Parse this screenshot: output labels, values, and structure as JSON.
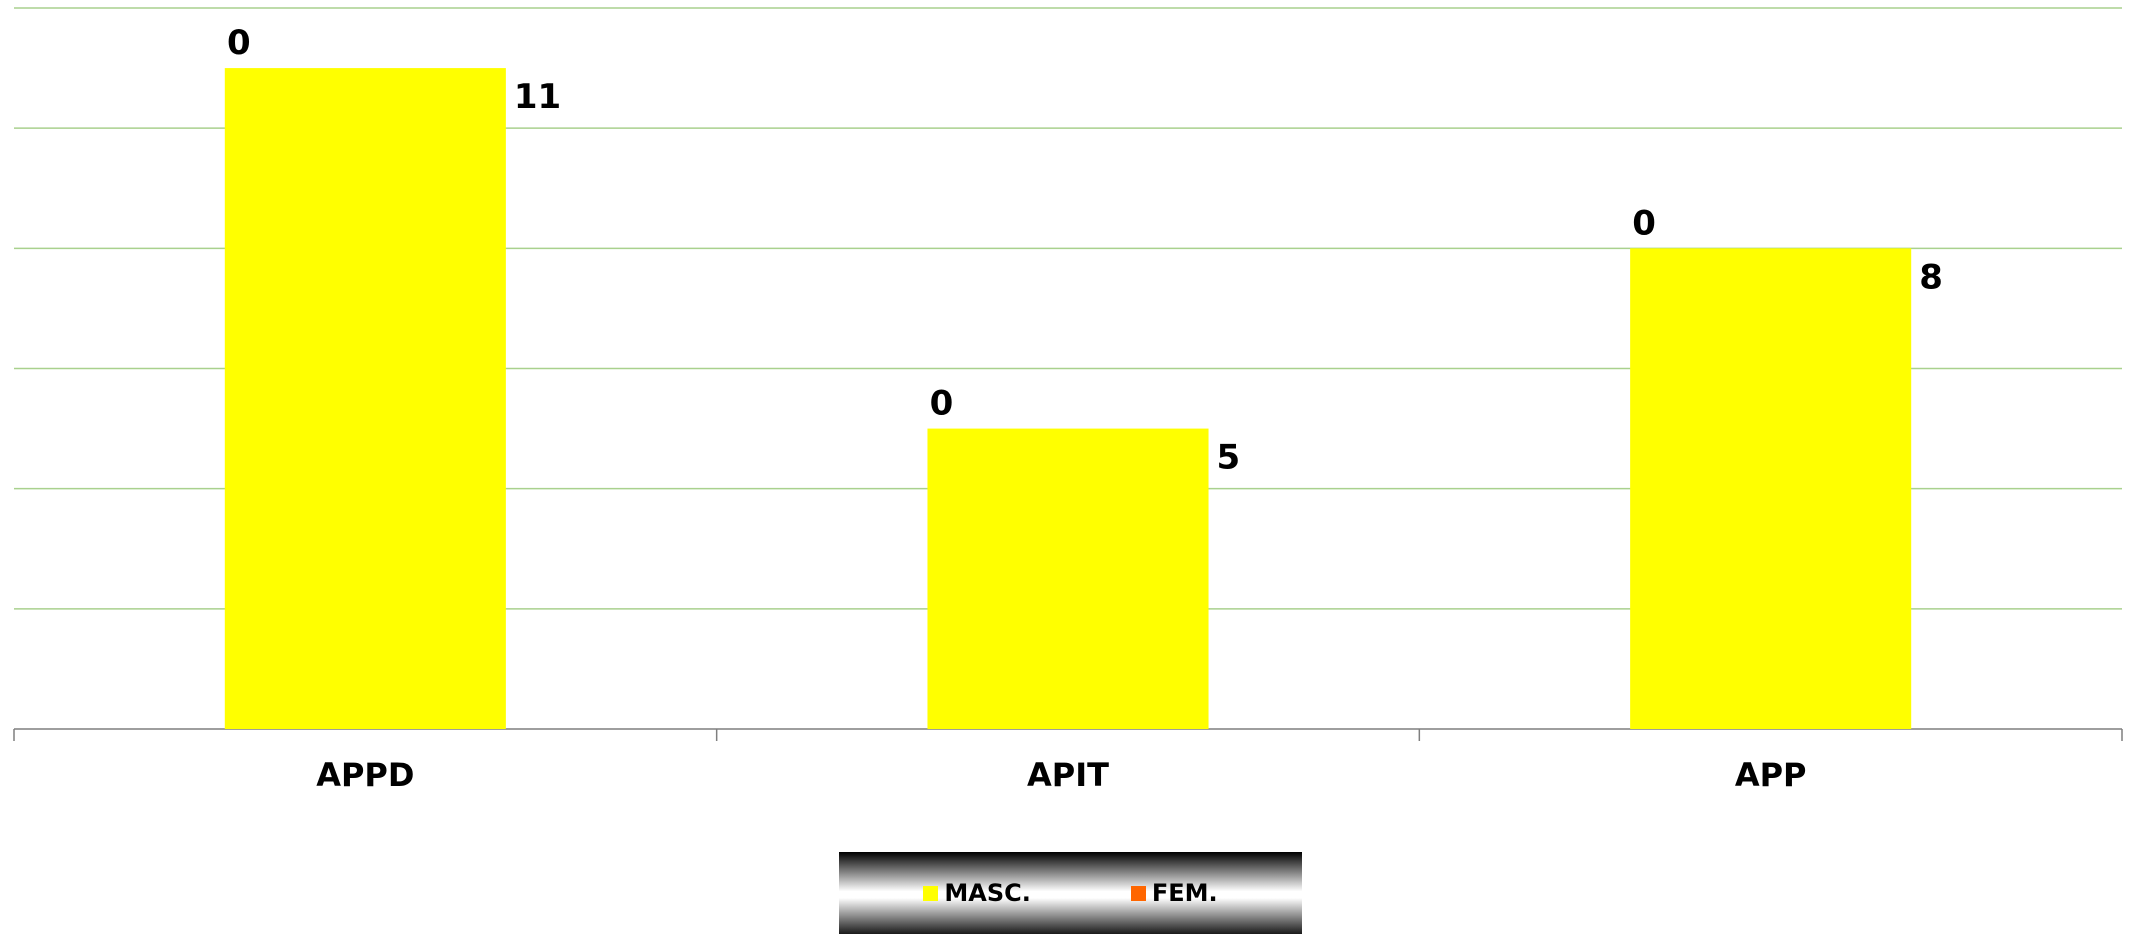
{
  "chart_data": {
    "type": "bar",
    "categories": [
      "APPD",
      "APIT",
      "APP"
    ],
    "series": [
      {
        "name": "MASC.",
        "values": [
          11,
          5,
          8
        ],
        "color": "#ffff00"
      },
      {
        "name": "FEM.",
        "values": [
          0,
          0,
          0
        ],
        "color": "#ff6600"
      }
    ],
    "ylim": [
      0,
      12
    ],
    "grid": true,
    "legend": "bottom",
    "title": "",
    "xlabel": "",
    "ylabel": ""
  }
}
